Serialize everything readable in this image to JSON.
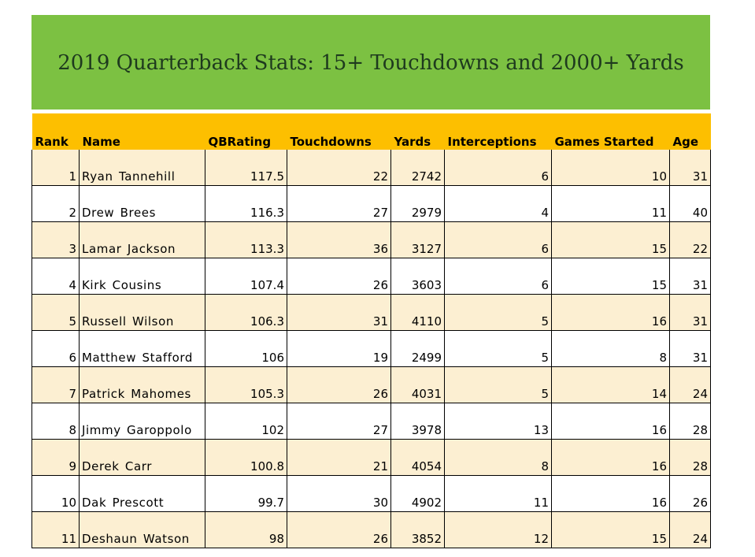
{
  "title": "2019 Quarterback Stats: 15+ Touchdowns and 2000+ Yards",
  "columns": [
    "Rank",
    "Name",
    "QBRating",
    "Touchdowns",
    "Yards",
    "Interceptions",
    "Games Started",
    "Age"
  ],
  "rows": [
    [
      "1",
      "Ryan  Tannehill",
      "117.5",
      "22",
      "2742",
      "6",
      "10",
      "31"
    ],
    [
      "2",
      "Drew  Brees",
      "116.3",
      "27",
      "2979",
      "4",
      "11",
      "40"
    ],
    [
      "3",
      "Lamar  Jackson",
      "113.3",
      "36",
      "3127",
      "6",
      "15",
      "22"
    ],
    [
      "4",
      "Kirk  Cousins",
      "107.4",
      "26",
      "3603",
      "6",
      "15",
      "31"
    ],
    [
      "5",
      "Russell  Wilson",
      "106.3",
      "31",
      "4110",
      "5",
      "16",
      "31"
    ],
    [
      "6",
      "Matthew  Stafford",
      "106",
      "19",
      "2499",
      "5",
      "8",
      "31"
    ],
    [
      "7",
      "Patrick  Mahomes",
      "105.3",
      "26",
      "4031",
      "5",
      "14",
      "24"
    ],
    [
      "8",
      "Jimmy  Garoppolo",
      "102",
      "27",
      "3978",
      "13",
      "16",
      "28"
    ],
    [
      "9",
      "Derek  Carr",
      "100.8",
      "21",
      "4054",
      "8",
      "16",
      "28"
    ],
    [
      "10",
      "Dak  Prescott",
      "99.7",
      "30",
      "4902",
      "11",
      "16",
      "26"
    ],
    [
      "11",
      "Deshaun  Watson",
      "98",
      "26",
      "3852",
      "12",
      "15",
      "24"
    ]
  ],
  "colors": {
    "banner": "#7cc142",
    "header": "#fdbf00",
    "row_alt": "#fcefd2"
  }
}
